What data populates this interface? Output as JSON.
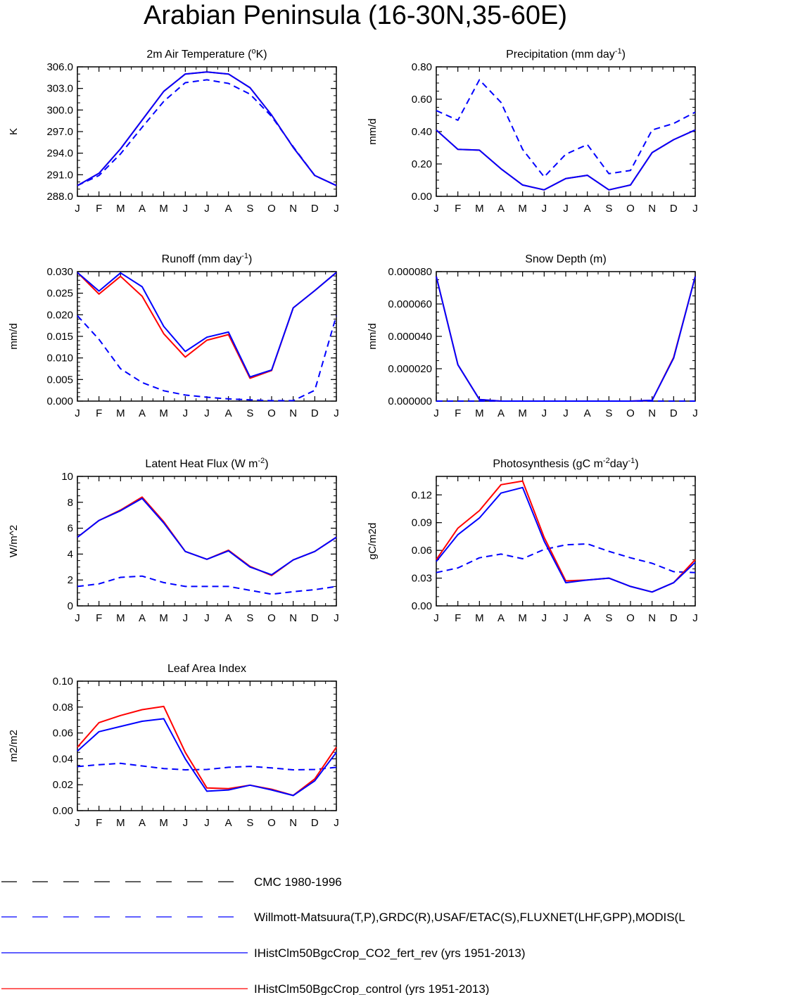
{
  "title": "Arabian Peninsula (16-30N,35-60E)",
  "colors": {
    "obs_cmc": "#000000",
    "obs": "#0000ff",
    "co2_fert_rev": "#0000ff",
    "control": "#ff0000"
  },
  "legend": [
    {
      "label": "CMC 1980-1996",
      "color": "#000000",
      "dashed": true
    },
    {
      "label": "Willmott-Matsuura(T,P),GRDC(R),USAF/ETAC(S),FLUXNET(LHF,GPP),MODIS(L",
      "color": "#0000ff",
      "dashed": true
    },
    {
      "label": "IHistClm50BgcCrop_CO2_fert_rev (yrs 1951-2013)",
      "color": "#0000ff",
      "dashed": false
    },
    {
      "label": "IHistClm50BgcCrop_control (yrs 1951-2013)",
      "color": "#ff0000",
      "dashed": false
    }
  ],
  "chart_data": [
    {
      "type": "line",
      "title": "2m Air Temperature (°K)",
      "title_parts": [
        {
          "t": "2m Air Temperature ("
        },
        {
          "t": "o",
          "sup": true
        },
        {
          "t": "K)"
        }
      ],
      "ylabel": "K",
      "x": [
        "J",
        "F",
        "M",
        "A",
        "M",
        "J",
        "J",
        "A",
        "S",
        "O",
        "N",
        "D",
        "J"
      ],
      "ylim": [
        288.0,
        306.0
      ],
      "yticks": [
        "288.0",
        "291.0",
        "294.0",
        "297.0",
        "300.0",
        "303.0",
        "306.0"
      ],
      "series": [
        {
          "color": "#0000ff",
          "dashed": true,
          "values": [
            289.5,
            290.9,
            293.9,
            297.6,
            301.2,
            303.8,
            304.2,
            303.7,
            302.2,
            299.1,
            294.9,
            290.9,
            289.5
          ]
        },
        {
          "color": "#ff0000",
          "dashed": false,
          "values": [
            289.5,
            291.2,
            294.6,
            298.6,
            302.6,
            305.0,
            305.3,
            305.0,
            303.1,
            299.3,
            294.8,
            290.9,
            289.5
          ]
        },
        {
          "color": "#0000ff",
          "dashed": false,
          "values": [
            289.5,
            291.2,
            294.6,
            298.6,
            302.6,
            305.0,
            305.3,
            305.0,
            303.1,
            299.3,
            294.8,
            290.9,
            289.5
          ]
        }
      ]
    },
    {
      "type": "line",
      "title": "Precipitation (mm day-1)",
      "title_parts": [
        {
          "t": "Precipitation (mm day"
        },
        {
          "t": "-1",
          "sup": true
        },
        {
          "t": ")"
        }
      ],
      "ylabel": "mm/d",
      "x": [
        "J",
        "F",
        "M",
        "A",
        "M",
        "J",
        "J",
        "A",
        "S",
        "O",
        "N",
        "D",
        "J"
      ],
      "ylim": [
        0.0,
        0.8
      ],
      "yticks": [
        "0.00",
        "0.20",
        "0.40",
        "0.60",
        "0.80"
      ],
      "series": [
        {
          "color": "#0000ff",
          "dashed": true,
          "values": [
            0.53,
            0.47,
            0.72,
            0.58,
            0.29,
            0.12,
            0.26,
            0.32,
            0.14,
            0.16,
            0.41,
            0.45,
            0.52
          ]
        },
        {
          "color": "#ff0000",
          "dashed": false,
          "values": [
            0.41,
            0.29,
            0.285,
            0.17,
            0.07,
            0.04,
            0.11,
            0.13,
            0.04,
            0.07,
            0.27,
            0.35,
            0.41
          ]
        },
        {
          "color": "#0000ff",
          "dashed": false,
          "values": [
            0.41,
            0.29,
            0.285,
            0.17,
            0.07,
            0.04,
            0.11,
            0.13,
            0.04,
            0.07,
            0.27,
            0.35,
            0.41
          ]
        }
      ]
    },
    {
      "type": "line",
      "title": "Runoff (mm day-1)",
      "title_parts": [
        {
          "t": "Runoff (mm day"
        },
        {
          "t": "-1",
          "sup": true
        },
        {
          "t": ")"
        }
      ],
      "ylabel": "mm/d",
      "x": [
        "J",
        "F",
        "M",
        "A",
        "M",
        "J",
        "J",
        "A",
        "S",
        "O",
        "N",
        "D",
        "J"
      ],
      "ylim": [
        0.0,
        0.03
      ],
      "yticks": [
        "0.000",
        "0.005",
        "0.010",
        "0.015",
        "0.020",
        "0.025",
        "0.030"
      ],
      "series": [
        {
          "color": "#0000ff",
          "dashed": true,
          "values": [
            0.0198,
            0.0143,
            0.0075,
            0.0043,
            0.0024,
            0.0014,
            0.0009,
            0.0005,
            0.0003,
            0.0001,
            0.0001,
            0.0025,
            0.0198
          ]
        },
        {
          "color": "#ff0000",
          "dashed": false,
          "values": [
            0.0298,
            0.0248,
            0.0289,
            0.0243,
            0.0156,
            0.0102,
            0.0141,
            0.0154,
            0.0053,
            0.0071,
            0.0216,
            0.0256,
            0.0298
          ]
        },
        {
          "color": "#0000ff",
          "dashed": false,
          "values": [
            0.0298,
            0.0255,
            0.0297,
            0.0265,
            0.0173,
            0.0115,
            0.0148,
            0.016,
            0.0056,
            0.0072,
            0.0216,
            0.0256,
            0.0298
          ]
        }
      ]
    },
    {
      "type": "line",
      "title": "Snow Depth (m)",
      "title_parts": [
        {
          "t": "Snow Depth (m)"
        }
      ],
      "ylabel": "mm/d",
      "x": [
        "J",
        "F",
        "M",
        "A",
        "M",
        "J",
        "J",
        "A",
        "S",
        "O",
        "N",
        "D",
        "J"
      ],
      "ylim": [
        0.0,
        8e-05
      ],
      "yticks": [
        "0.000000",
        "0.000020",
        "0.000040",
        "0.000060",
        "0.000080"
      ],
      "series": [
        {
          "color": "#0000ff",
          "dashed": true,
          "values": [
            0,
            0,
            0,
            0,
            0,
            0,
            0,
            0,
            0,
            0,
            0,
            0,
            0
          ]
        },
        {
          "color": "#ff0000",
          "dashed": false,
          "values": [
            7.7e-05,
            2.25e-05,
            1e-06,
            0,
            0,
            0,
            0,
            0,
            0,
            0,
            5e-07,
            2.7e-05,
            7.7e-05
          ]
        },
        {
          "color": "#0000ff",
          "dashed": false,
          "values": [
            7.7e-05,
            2.25e-05,
            1e-06,
            0,
            0,
            0,
            0,
            0,
            0,
            0,
            5e-07,
            2.65e-05,
            7.7e-05
          ]
        }
      ]
    },
    {
      "type": "line",
      "title": "Latent Heat Flux (W m-2)",
      "title_parts": [
        {
          "t": "Latent Heat Flux (W m"
        },
        {
          "t": "-2",
          "sup": true
        },
        {
          "t": ")"
        }
      ],
      "ylabel": "W/m^2",
      "x": [
        "J",
        "F",
        "M",
        "A",
        "M",
        "J",
        "J",
        "A",
        "S",
        "O",
        "N",
        "D",
        "J"
      ],
      "ylim": [
        0,
        10
      ],
      "yticks": [
        "0",
        "2",
        "4",
        "6",
        "8",
        "10"
      ],
      "series": [
        {
          "color": "#0000ff",
          "dashed": true,
          "values": [
            1.5,
            1.7,
            2.2,
            2.3,
            1.8,
            1.5,
            1.5,
            1.5,
            1.2,
            0.9,
            1.1,
            1.25,
            1.5
          ]
        },
        {
          "color": "#ff0000",
          "dashed": false,
          "values": [
            5.3,
            6.6,
            7.4,
            8.4,
            6.5,
            4.2,
            3.6,
            4.3,
            3.05,
            2.35,
            3.55,
            4.2,
            5.3
          ]
        },
        {
          "color": "#0000ff",
          "dashed": false,
          "values": [
            5.3,
            6.6,
            7.35,
            8.3,
            6.4,
            4.2,
            3.6,
            4.25,
            3.0,
            2.4,
            3.55,
            4.2,
            5.3
          ]
        }
      ]
    },
    {
      "type": "line",
      "title": "Photosynthesis (gC m-2day-1)",
      "title_parts": [
        {
          "t": "Photosynthesis (gC m"
        },
        {
          "t": "-2",
          "sup": true
        },
        {
          "t": "day"
        },
        {
          "t": "-1",
          "sup": true
        },
        {
          "t": ")"
        }
      ],
      "ylabel": "gC/m2d",
      "x": [
        "J",
        "F",
        "M",
        "A",
        "M",
        "J",
        "J",
        "A",
        "S",
        "O",
        "N",
        "D",
        "J"
      ],
      "ylim": [
        0.0,
        0.14
      ],
      "yticks": [
        "0.00",
        "0.03",
        "0.06",
        "0.09",
        "0.12"
      ],
      "series": [
        {
          "color": "#0000ff",
          "dashed": true,
          "values": [
            0.036,
            0.041,
            0.052,
            0.056,
            0.051,
            0.061,
            0.066,
            0.067,
            0.059,
            0.052,
            0.046,
            0.037,
            0.036
          ]
        },
        {
          "color": "#ff0000",
          "dashed": false,
          "values": [
            0.05,
            0.084,
            0.103,
            0.131,
            0.135,
            0.074,
            0.027,
            0.028,
            0.03,
            0.021,
            0.015,
            0.025,
            0.05
          ]
        },
        {
          "color": "#0000ff",
          "dashed": false,
          "values": [
            0.048,
            0.077,
            0.095,
            0.122,
            0.128,
            0.07,
            0.025,
            0.028,
            0.03,
            0.021,
            0.015,
            0.025,
            0.047
          ]
        }
      ]
    },
    {
      "type": "line",
      "title": "Leaf Area Index",
      "title_parts": [
        {
          "t": "Leaf Area Index"
        }
      ],
      "ylabel": "m2/m2",
      "x": [
        "J",
        "F",
        "M",
        "A",
        "M",
        "J",
        "J",
        "A",
        "S",
        "O",
        "N",
        "D",
        "J"
      ],
      "ylim": [
        0.0,
        0.1
      ],
      "yticks": [
        "0.00",
        "0.02",
        "0.04",
        "0.06",
        "0.08",
        "0.10"
      ],
      "series": [
        {
          "color": "#0000ff",
          "dashed": true,
          "values": [
            0.034,
            0.0355,
            0.0365,
            0.0345,
            0.0325,
            0.0315,
            0.0318,
            0.0335,
            0.0342,
            0.033,
            0.0315,
            0.0318,
            0.0335
          ]
        },
        {
          "color": "#ff0000",
          "dashed": false,
          "values": [
            0.049,
            0.068,
            0.0735,
            0.078,
            0.0805,
            0.045,
            0.0175,
            0.017,
            0.0197,
            0.0165,
            0.0118,
            0.0245,
            0.049
          ]
        },
        {
          "color": "#0000ff",
          "dashed": false,
          "values": [
            0.046,
            0.061,
            0.065,
            0.069,
            0.071,
            0.04,
            0.015,
            0.016,
            0.0197,
            0.016,
            0.0117,
            0.023,
            0.045
          ]
        }
      ]
    }
  ]
}
